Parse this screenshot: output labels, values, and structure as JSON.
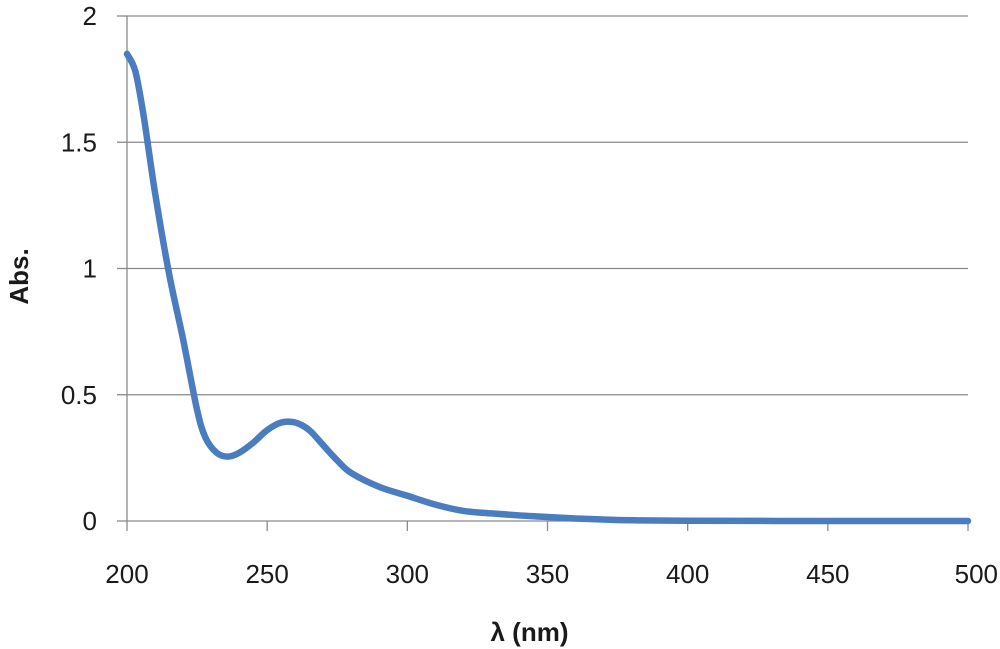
{
  "chart_data": {
    "type": "line",
    "title": "",
    "xlabel": "λ (nm)",
    "ylabel": "Abs.",
    "xlim": [
      200,
      500
    ],
    "ylim": [
      0,
      2
    ],
    "x_ticks": [
      200,
      250,
      300,
      350,
      400,
      450,
      500
    ],
    "y_ticks": [
      0,
      0.5,
      1,
      1.5,
      2
    ],
    "y_tick_labels": [
      "0",
      "0.5",
      "1",
      "1.5",
      "2"
    ],
    "x_tick_labels": [
      "200",
      "250",
      "300",
      "350",
      "400",
      "450",
      "500"
    ],
    "grid": "horizontal",
    "legend": "none",
    "series": [
      {
        "color": "#4a7cc0",
        "x": [
          200,
          203,
          206,
          210,
          215,
          220,
          225,
          228,
          232,
          236,
          240,
          245,
          250,
          255,
          260,
          265,
          270,
          275,
          280,
          290,
          300,
          310,
          320,
          330,
          340,
          350,
          360,
          370,
          380,
          400,
          450,
          500
        ],
        "y": [
          1.85,
          1.78,
          1.6,
          1.3,
          0.98,
          0.72,
          0.44,
          0.33,
          0.27,
          0.255,
          0.27,
          0.31,
          0.36,
          0.39,
          0.39,
          0.36,
          0.3,
          0.24,
          0.19,
          0.135,
          0.1,
          0.065,
          0.04,
          0.03,
          0.022,
          0.016,
          0.01,
          0.006,
          0.003,
          0.001,
          0.0,
          0.0
        ]
      }
    ]
  }
}
